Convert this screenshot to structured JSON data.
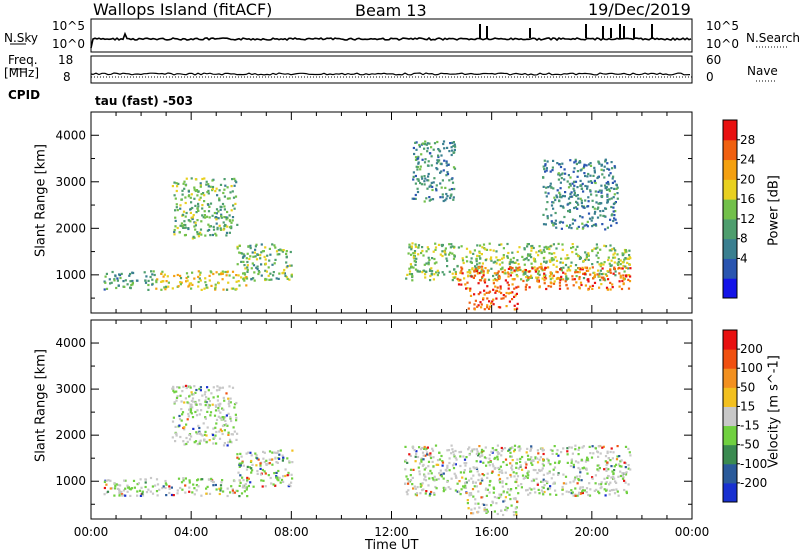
{
  "header": {
    "station": "Wallops Island (fitACF)",
    "beam": "Beam 13",
    "date": "19/Dec/2019"
  },
  "top_panels": {
    "nsky_label": "N.Sky",
    "nsky_ticks": [
      "10^5",
      "10^0"
    ],
    "nsearch_label": "N.Search",
    "nsearch_ticks": [
      "10^5",
      "10^0"
    ],
    "freq_label_1": "Freq.",
    "freq_label_2": "[MHz]",
    "freq_ticks": [
      "18",
      "8"
    ],
    "nave_label": "Nave",
    "nave_ticks": [
      "60",
      "0"
    ],
    "cpid_label": "CPID",
    "cpid_value": "tau (fast) -503"
  },
  "chart_data": [
    {
      "type": "heatmap",
      "title": "",
      "ylabel": "Slant Range [km]",
      "xlabel": "Time UT",
      "ylim": [
        180,
        4500
      ],
      "yticks": [
        "4000",
        "3000",
        "2000",
        "1000"
      ],
      "xticks": [
        "00:00",
        "04:00",
        "08:00",
        "12:00",
        "16:00",
        "20:00",
        "00:00"
      ],
      "colorbar": {
        "label": "Power [dB]",
        "ticks": [
          "28",
          "24",
          "20",
          "16",
          "12",
          "8",
          "4"
        ],
        "colors": [
          "#1414e8",
          "#2a55b0",
          "#3a7f90",
          "#4e9e6e",
          "#72c04a",
          "#e8d020",
          "#f4a010",
          "#f06010",
          "#e81010"
        ]
      },
      "regions": [
        {
          "t": [
            0.5,
            2.5
          ],
          "r": [
            700,
            1100
          ],
          "level": 0.35
        },
        {
          "t": [
            2.5,
            6.2
          ],
          "r": [
            700,
            1100
          ],
          "level": 0.6
        },
        {
          "t": [
            3.2,
            5.8
          ],
          "r": [
            1800,
            3100
          ],
          "level": 0.45
        },
        {
          "t": [
            5.8,
            8.0
          ],
          "r": [
            900,
            1700
          ],
          "level": 0.45
        },
        {
          "t": [
            12.5,
            21.5
          ],
          "r": [
            900,
            1700
          ],
          "level": 0.5
        },
        {
          "t": [
            14.5,
            21.5
          ],
          "r": [
            700,
            1200
          ],
          "level": 0.85
        },
        {
          "t": [
            15.0,
            17.0
          ],
          "r": [
            280,
            700
          ],
          "level": 0.9
        },
        {
          "t": [
            12.8,
            14.5
          ],
          "r": [
            2600,
            3900
          ],
          "level": 0.3
        },
        {
          "t": [
            18.0,
            21.0
          ],
          "r": [
            2000,
            3500
          ],
          "level": 0.3
        }
      ]
    },
    {
      "type": "heatmap",
      "title": "",
      "ylabel": "Slant Range [km]",
      "xlabel": "Time UT",
      "ylim": [
        180,
        4500
      ],
      "yticks": [
        "4000",
        "3000",
        "2000",
        "1000"
      ],
      "xticks": [
        "00:00",
        "04:00",
        "08:00",
        "12:00",
        "16:00",
        "20:00",
        "00:00"
      ],
      "colorbar": {
        "label": "Velocity [m s^-1]",
        "ticks": [
          "200",
          "100",
          "50",
          "15",
          "-15",
          "-50",
          "-100",
          "-200"
        ],
        "colors": [
          "#1830d0",
          "#2a5a9a",
          "#3a8a50",
          "#70d040",
          "#c8c8c8",
          "#f2c020",
          "#f29020",
          "#f05010",
          "#e81010"
        ]
      },
      "regions": [
        {
          "t": [
            0.5,
            6.2
          ],
          "r": [
            700,
            1100
          ],
          "level": 0.35
        },
        {
          "t": [
            3.2,
            5.8
          ],
          "r": [
            1800,
            3100
          ],
          "level": 0.5
        },
        {
          "t": [
            5.8,
            8.0
          ],
          "r": [
            900,
            1700
          ],
          "level": 0.35
        },
        {
          "t": [
            12.5,
            21.5
          ],
          "r": [
            700,
            1800
          ],
          "level": 0.5
        },
        {
          "t": [
            15.0,
            17.0
          ],
          "r": [
            280,
            700
          ],
          "level": 0.5
        }
      ]
    }
  ]
}
